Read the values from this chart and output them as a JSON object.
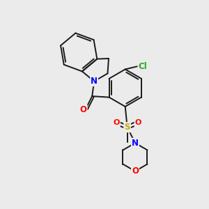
{
  "background_color": "#ebebeb",
  "bond_color": "#1a1a1a",
  "atom_colors": {
    "N": "#0000ff",
    "O": "#ff0000",
    "S": "#ccaa00",
    "Cl": "#22aa22",
    "C": "#1a1a1a"
  },
  "figsize": [
    3.0,
    3.0
  ],
  "dpi": 100,
  "bond_lw": 1.4,
  "font_size": 8.5
}
